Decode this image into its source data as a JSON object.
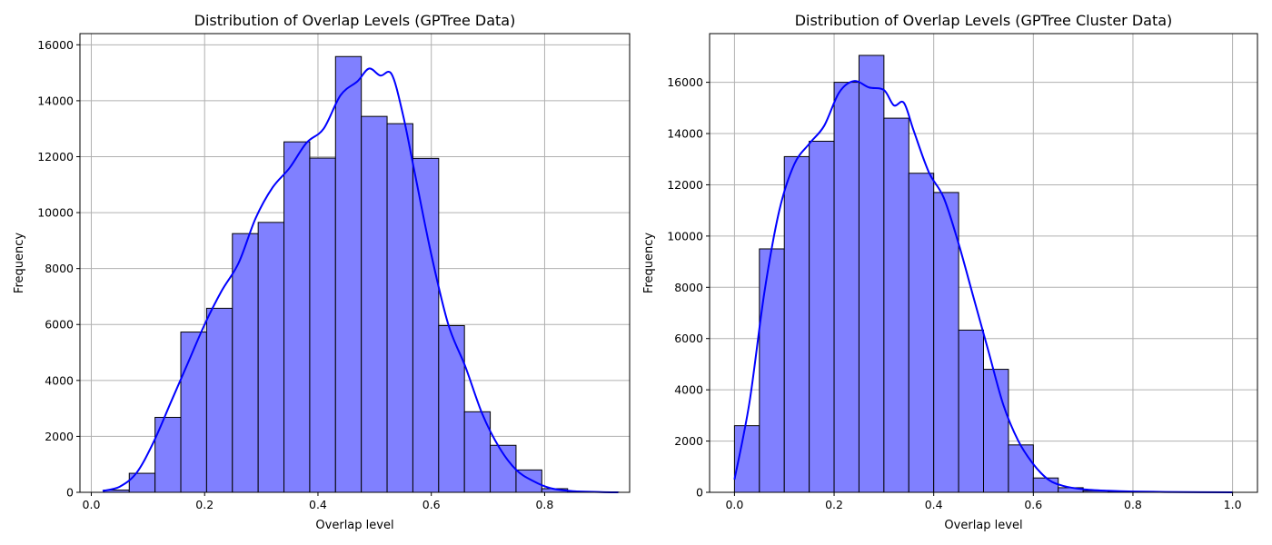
{
  "chart_data": [
    {
      "type": "bar",
      "title": "Distribution of Overlap Levels (GPTree Data)",
      "xlabel": "Overlap level",
      "ylabel": "Frequency",
      "xlim": [
        -0.02,
        0.95
      ],
      "ylim": [
        0,
        16400
      ],
      "xticks": [
        0.0,
        0.2,
        0.4,
        0.6,
        0.8
      ],
      "xtick_labels": [
        "0.0",
        "0.2",
        "0.4",
        "0.6",
        "0.8"
      ],
      "yticks": [
        0,
        2000,
        4000,
        6000,
        8000,
        10000,
        12000,
        14000,
        16000
      ],
      "ytick_labels": [
        "0",
        "2000",
        "4000",
        "6000",
        "8000",
        "10000",
        "12000",
        "14000",
        "16000"
      ],
      "grid": true,
      "bin_edges": [
        0.022,
        0.067,
        0.1125,
        0.158,
        0.2035,
        0.249,
        0.2945,
        0.34,
        0.3855,
        0.431,
        0.4765,
        0.522,
        0.5675,
        0.613,
        0.6585,
        0.704,
        0.7495,
        0.795,
        0.8405,
        0.886,
        0.931
      ],
      "counts": [
        80,
        680,
        2680,
        5730,
        6580,
        9250,
        9650,
        12530,
        11950,
        15580,
        13440,
        13180,
        11940,
        5960,
        2880,
        1680,
        800,
        130,
        20,
        5
      ],
      "kde": {
        "x": [
          0.02,
          0.05,
          0.08,
          0.11,
          0.14,
          0.17,
          0.2,
          0.23,
          0.26,
          0.29,
          0.32,
          0.35,
          0.38,
          0.41,
          0.44,
          0.47,
          0.49,
          0.51,
          0.53,
          0.55,
          0.57,
          0.6,
          0.63,
          0.66,
          0.69,
          0.72,
          0.75,
          0.78,
          0.81,
          0.85,
          0.9,
          0.93
        ],
        "y": [
          50,
          200,
          700,
          1800,
          3200,
          4600,
          6000,
          7200,
          8200,
          9800,
          10900,
          11600,
          12500,
          13000,
          14200,
          14700,
          15150,
          14900,
          14950,
          13500,
          11500,
          8500,
          6000,
          4500,
          2800,
          1600,
          800,
          400,
          150,
          40,
          10,
          0
        ]
      },
      "colors": {
        "bar": "#8080ff",
        "edge": "#000000",
        "kde": "#0000ff",
        "grid": "#b0b0b0"
      }
    },
    {
      "type": "bar",
      "title": "Distribution of Overlap Levels (GPTree Cluster Data)",
      "xlabel": "Overlap level",
      "ylabel": "Frequency",
      "xlim": [
        -0.05,
        1.05
      ],
      "ylim": [
        0,
        17900
      ],
      "xticks": [
        0.0,
        0.2,
        0.4,
        0.6,
        0.8,
        1.0
      ],
      "xtick_labels": [
        "0.0",
        "0.2",
        "0.4",
        "0.6",
        "0.8",
        "1.0"
      ],
      "yticks": [
        0,
        2000,
        4000,
        6000,
        8000,
        10000,
        12000,
        14000,
        16000
      ],
      "ytick_labels": [
        "0",
        "2000",
        "4000",
        "6000",
        "8000",
        "10000",
        "12000",
        "14000",
        "16000"
      ],
      "grid": true,
      "bin_edges": [
        0.0,
        0.05,
        0.1,
        0.15,
        0.2,
        0.25,
        0.3,
        0.35,
        0.4,
        0.45,
        0.5,
        0.55,
        0.6,
        0.65,
        0.7,
        0.75,
        0.8,
        0.85,
        0.9,
        0.95,
        1.0
      ],
      "counts": [
        2600,
        9500,
        13100,
        13700,
        16000,
        17050,
        14600,
        12450,
        11700,
        6330,
        4800,
        1850,
        560,
        180,
        60,
        20,
        10,
        5,
        5,
        5
      ],
      "kde": {
        "x": [
          0.0,
          0.03,
          0.06,
          0.09,
          0.12,
          0.15,
          0.18,
          0.21,
          0.24,
          0.27,
          0.3,
          0.32,
          0.34,
          0.36,
          0.39,
          0.42,
          0.45,
          0.48,
          0.51,
          0.54,
          0.57,
          0.6,
          0.63,
          0.66,
          0.7,
          0.75,
          0.8,
          0.9,
          1.0
        ],
        "y": [
          500,
          3500,
          7800,
          11000,
          12800,
          13600,
          14300,
          15600,
          16050,
          15800,
          15700,
          15100,
          15200,
          14100,
          12500,
          11500,
          9700,
          7600,
          5500,
          3400,
          2000,
          1100,
          500,
          250,
          120,
          60,
          30,
          10,
          0
        ]
      },
      "colors": {
        "bar": "#8080ff",
        "edge": "#000000",
        "kde": "#0000ff",
        "grid": "#b0b0b0"
      }
    }
  ]
}
